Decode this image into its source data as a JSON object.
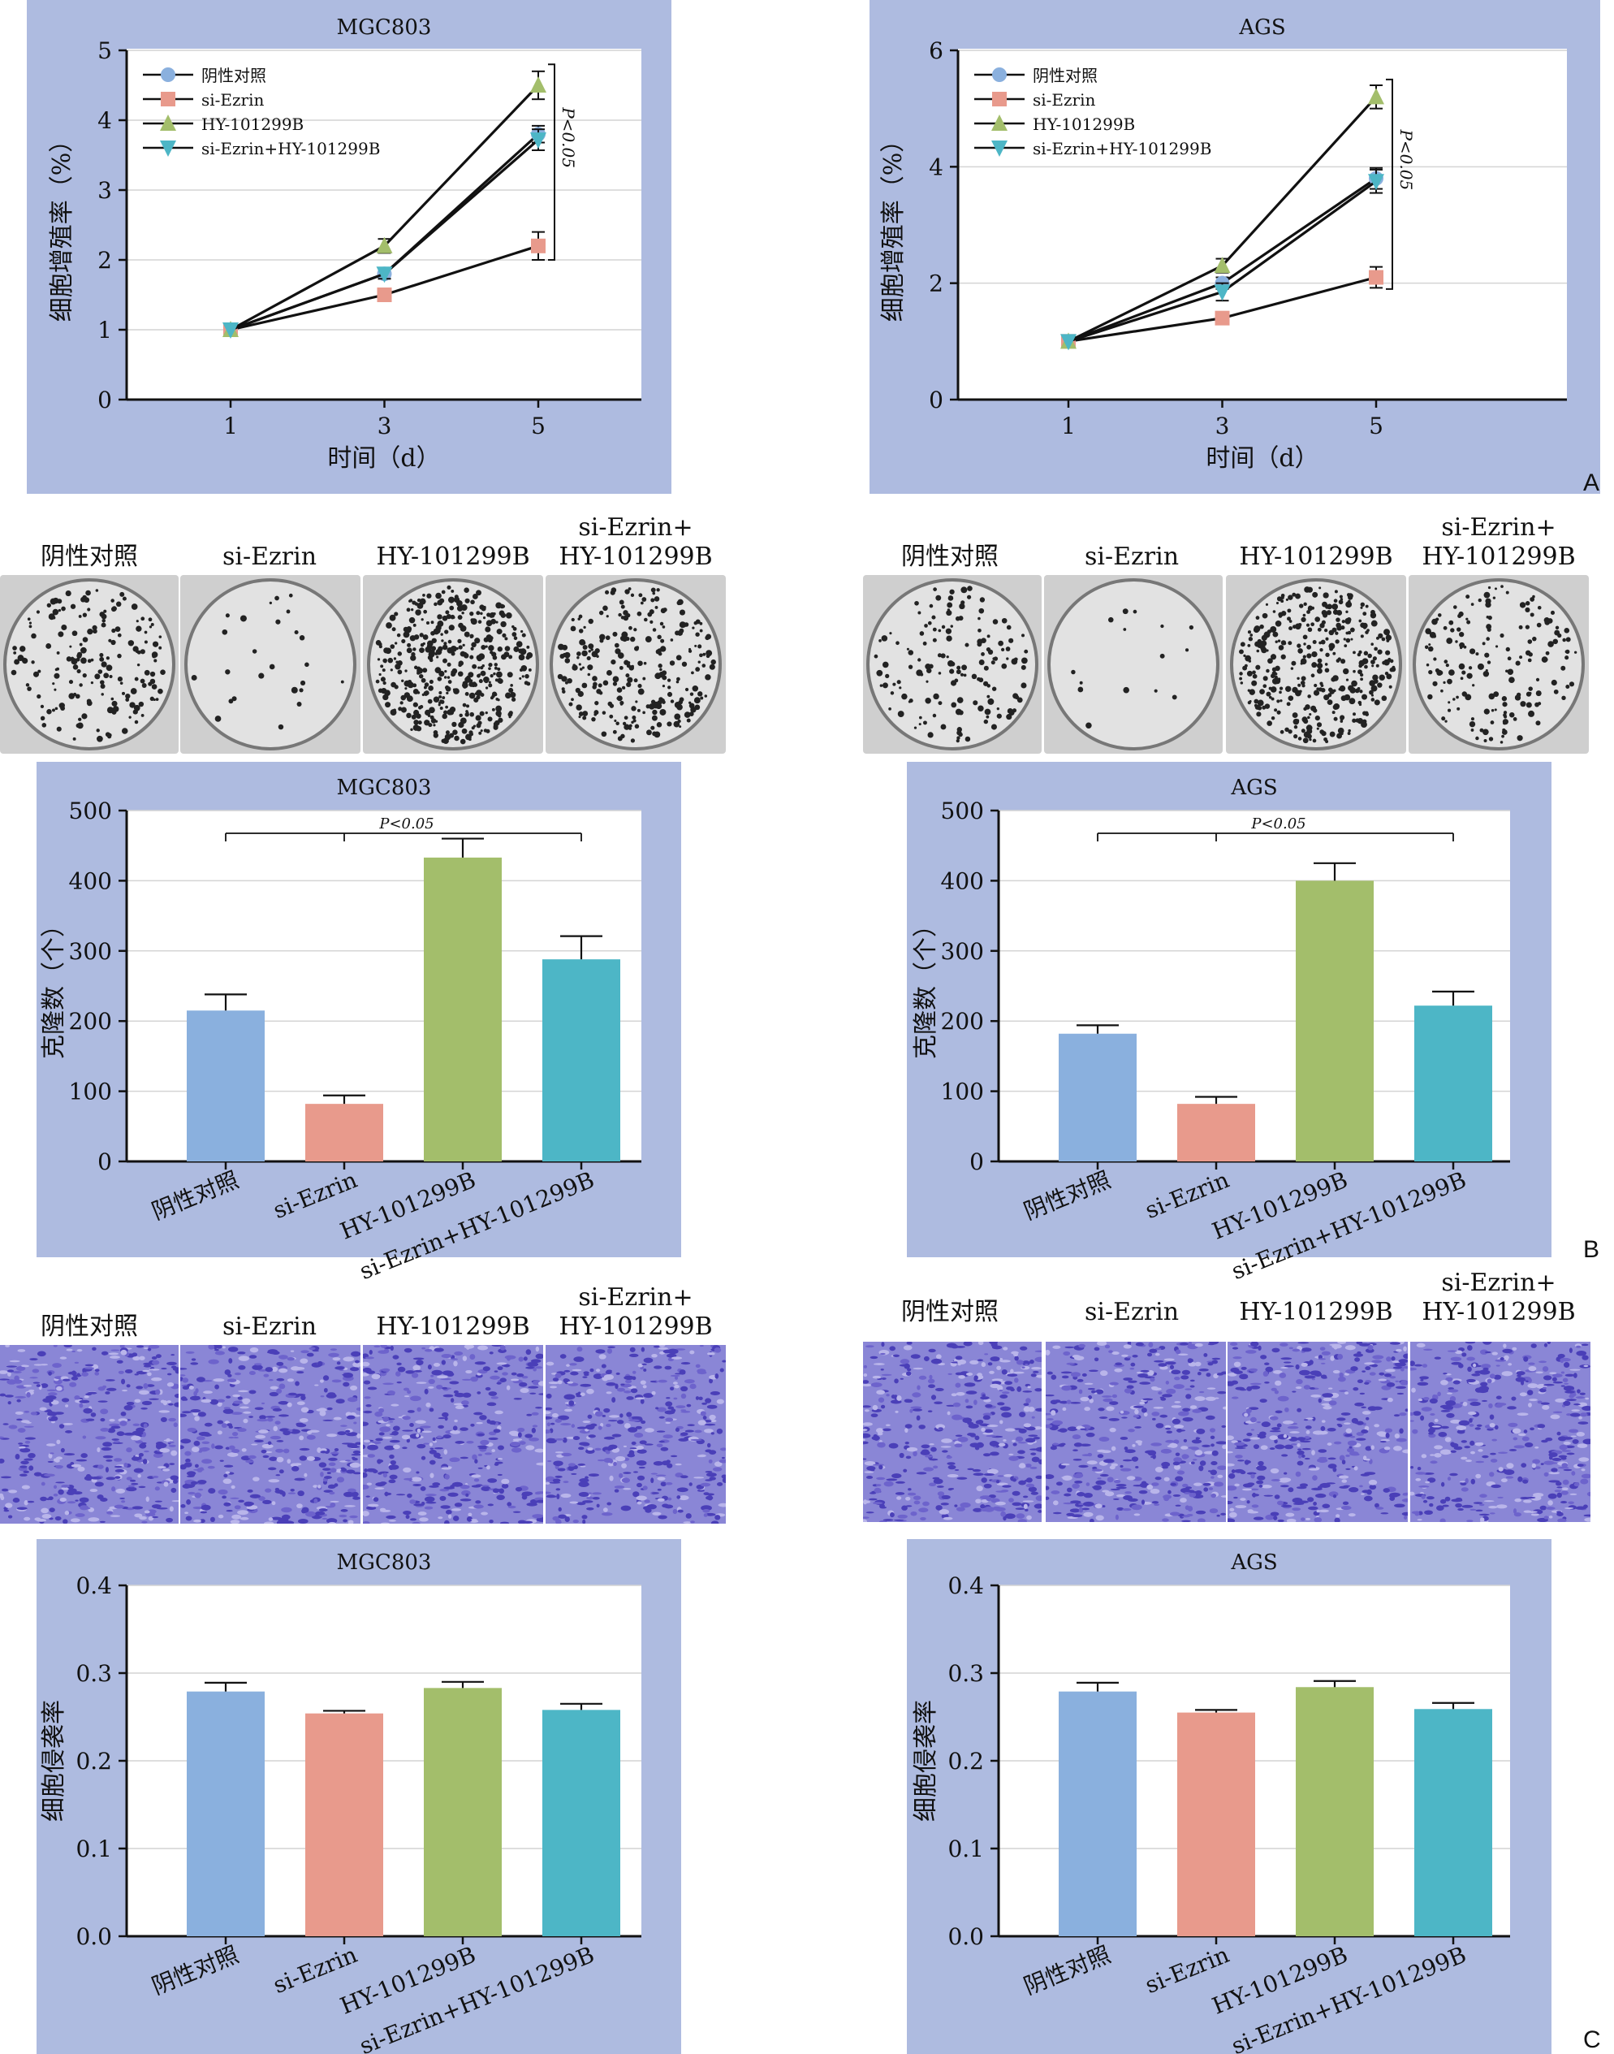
{
  "panel_labels": {
    "a": "A",
    "b": "B",
    "c": "C"
  },
  "group_labels": [
    "阴性对照",
    "si-Ezrin",
    "HY-101299B",
    "si-Ezrin+HY-101299B"
  ],
  "photo_headers": [
    "阴性对照",
    "si-Ezrin",
    "HY-101299B",
    "si-Ezrin+\nHY-101299B"
  ],
  "colors": {
    "neg": "#8ab0de",
    "si": "#e89a8c",
    "hy": "#a3be6b",
    "combo": "#4db6c6",
    "panel": "#aebbe0",
    "grid": "#d4d4d4"
  },
  "chart_data": [
    {
      "id": "proliferation-mgc803",
      "type": "line",
      "title": "MGC803",
      "xlabel": "时间（d）",
      "ylabel": "细胞增殖率（%）",
      "x": [
        1,
        3,
        5
      ],
      "ylim": [
        0,
        5
      ],
      "yticks": [
        0,
        1,
        2,
        3,
        4,
        5
      ],
      "annotation": "P<0.05",
      "series": [
        {
          "name": "阴性对照",
          "marker": "circle",
          "values": [
            1,
            1.8,
            3.8
          ],
          "errors": [
            0,
            0.07,
            0.12
          ]
        },
        {
          "name": "si-Ezrin",
          "marker": "square",
          "values": [
            1,
            1.5,
            2.2
          ],
          "errors": [
            0,
            0.05,
            0.2
          ]
        },
        {
          "name": "HY-101299B",
          "marker": "triangle-up",
          "values": [
            1,
            2.2,
            4.5
          ],
          "errors": [
            0,
            0.1,
            0.2
          ]
        },
        {
          "name": "si-Ezrin+HY-101299B",
          "marker": "triangle-down",
          "values": [
            1,
            1.8,
            3.72
          ],
          "errors": [
            0,
            0.07,
            0.15
          ]
        }
      ]
    },
    {
      "id": "proliferation-ags",
      "type": "line",
      "title": "AGS",
      "xlabel": "时间（d）",
      "ylabel": "细胞增殖率（%）",
      "x": [
        1,
        3,
        5
      ],
      "ylim": [
        0,
        6
      ],
      "yticks": [
        0,
        2,
        4,
        6
      ],
      "annotation": "P<0.05",
      "series": [
        {
          "name": "阴性对照",
          "marker": "circle",
          "values": [
            1,
            2.0,
            3.8
          ],
          "errors": [
            0,
            0.1,
            0.18
          ]
        },
        {
          "name": "si-Ezrin",
          "marker": "square",
          "values": [
            1,
            1.4,
            2.1
          ],
          "errors": [
            0,
            0.06,
            0.18
          ]
        },
        {
          "name": "HY-101299B",
          "marker": "triangle-up",
          "values": [
            1,
            2.3,
            5.2
          ],
          "errors": [
            0,
            0.12,
            0.2
          ]
        },
        {
          "name": "si-Ezrin+HY-101299B",
          "marker": "triangle-down",
          "values": [
            1,
            1.85,
            3.75
          ],
          "errors": [
            0,
            0.15,
            0.2
          ]
        }
      ]
    },
    {
      "id": "clones-mgc803",
      "type": "bar",
      "title": "MGC803",
      "ylabel": "克隆数（个）",
      "categories": [
        "阴性对照",
        "si-Ezrin",
        "HY-101299B",
        "si-Ezrin+HY-101299B"
      ],
      "values": [
        215,
        82,
        433,
        288
      ],
      "errors": [
        23,
        12,
        27,
        33
      ],
      "ylim": [
        0,
        500
      ],
      "yticks": [
        0,
        100,
        200,
        300,
        400,
        500
      ],
      "annotation": "P<0.05"
    },
    {
      "id": "clones-ags",
      "type": "bar",
      "title": "AGS",
      "ylabel": "克隆数（个）",
      "categories": [
        "阴性对照",
        "si-Ezrin",
        "HY-101299B",
        "si-Ezrin+HY-101299B"
      ],
      "values": [
        182,
        82,
        400,
        222
      ],
      "errors": [
        12,
        10,
        25,
        20
      ],
      "ylim": [
        0,
        500
      ],
      "yticks": [
        0,
        100,
        200,
        300,
        400,
        500
      ],
      "annotation": "P<0.05"
    },
    {
      "id": "invasion-mgc803",
      "type": "bar",
      "title": "MGC803",
      "ylabel": "细胞侵袭率",
      "categories": [
        "阴性对照",
        "si-Ezrin",
        "HY-101299B",
        "si-Ezrin+HY-101299B"
      ],
      "values": [
        0.279,
        0.254,
        0.283,
        0.258
      ],
      "errors": [
        0.01,
        0.003,
        0.007,
        0.007
      ],
      "ylim": [
        0,
        0.4
      ],
      "yticks": [
        "0.0",
        "0.1",
        "0.2",
        "0.3",
        "0.4"
      ]
    },
    {
      "id": "invasion-ags",
      "type": "bar",
      "title": "AGS",
      "ylabel": "细胞侵袭率",
      "categories": [
        "阴性对照",
        "si-Ezrin",
        "HY-101299B",
        "si-Ezrin+HY-101299B"
      ],
      "values": [
        0.279,
        0.255,
        0.284,
        0.259
      ],
      "errors": [
        0.01,
        0.003,
        0.007,
        0.007
      ],
      "ylim": [
        0,
        0.4
      ],
      "yticks": [
        "0.0",
        "0.1",
        "0.2",
        "0.3",
        "0.4"
      ]
    }
  ]
}
